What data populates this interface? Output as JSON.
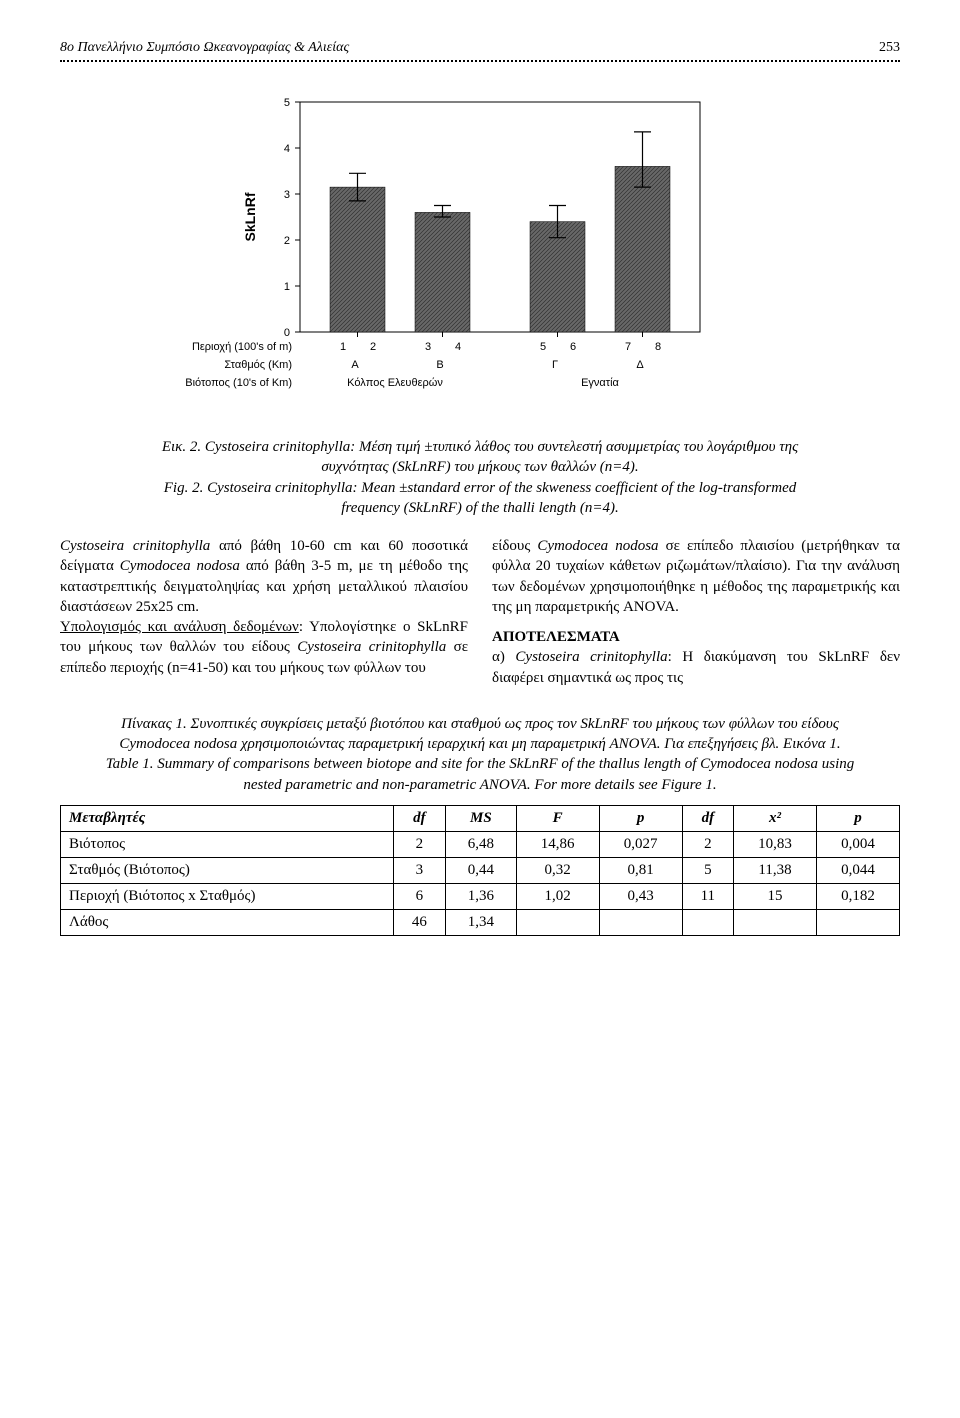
{
  "header": {
    "title": "8ο Πανελλήνιο Συμπόσιο Ωκεανογραφίας & Αλιείας",
    "page": "253"
  },
  "chart": {
    "type": "bar",
    "ylabel": "SkLnRf",
    "ylim": [
      0,
      5
    ],
    "ytick_step": 1,
    "bars": [
      {
        "x": 1,
        "val": 3.15,
        "err_low": 2.85,
        "err_high": 3.45
      },
      {
        "x": 2,
        "val": 2.6,
        "err_low": 2.5,
        "err_high": 2.75
      },
      {
        "x": 3,
        "val": 2.4,
        "err_low": 2.05,
        "err_high": 2.75
      },
      {
        "x": 4,
        "val": 3.6,
        "err_low": 3.15,
        "err_high": 4.35
      }
    ],
    "bar_color": "#606060",
    "row_labels": {
      "row1": "Περιοχή (100's of m)",
      "row2": "Σταθμός (Km)",
      "row3": "Βιότοπος (10's of Km)"
    },
    "region_labels": [
      "1",
      "2",
      "3",
      "4",
      "5",
      "6",
      "7",
      "8"
    ],
    "station_labels": [
      "Α",
      "Β",
      "Γ",
      "Δ"
    ],
    "biotope_labels": [
      "Κόλπος Ελευθερών",
      "Εγνατία"
    ],
    "background_color": "#ffffff",
    "axis_color": "#000000",
    "bar_width": 0.75,
    "label_fontsize": 11
  },
  "fig_caption_gr_prefix": "Εικ. 2. ",
  "fig_caption_gr": "Cystoseira crinitophylla: Μέση τιμή ±τυπικό λάθος του συντελεστή ασυμμετρίας του λογάριθμου της συχνότητας (SkLnRF) του μήκους των θαλλών (n=4).",
  "fig_caption_en_prefix": "Fig. 2. ",
  "fig_caption_en": "Cystoseira crinitophylla: Mean ±standard error of the skweness coefficient of the log-transformed frequency (SkLnRF) of the thalli length (n=4).",
  "col_left_p1a": "Cystoseira crinitophylla",
  "col_left_p1b": " από βάθη 10-60 cm και 60 ποσοτικά δείγματα ",
  "col_left_p1c": "Cymodocea nodosa",
  "col_left_p1d": " από βάθη 3-5 m, με τη μέθοδο της καταστρεπτικής δειγματοληψίας και χρήση μεταλλικού πλαισίου διαστάσεων 25x25 cm.",
  "col_left_p2a": "Υπολογισμός και ανάλυση δεδομένων",
  "col_left_p2b": ": Υπολογί­στηκε ο SkLnRF του μήκους των θαλλών του είδους ",
  "col_left_p2c": "Cystoseira crinitophylla",
  "col_left_p2d": " σε επίπεδο περι­οχής (n=41-50) και του μήκους των φύλλων του",
  "col_right_p1a": "είδους ",
  "col_right_p1b": "Cymodocea nodosa",
  "col_right_p1c": " σε επίπεδο πλαισίου (μετρήθηκαν τα φύλλα 20 τυχαίων κάθετων ρι­ζωμάτων/πλαίσιο). Για την ανάλυση των δεδο­μένων χρησιμοποιήθηκε η μέθοδος της παραμε­τρικής και της μη παραμετρικής ANOVA.",
  "col_right_head": "ΑΠΟΤΕΛΕΣΜΑΤΑ",
  "col_right_p2a": "α) ",
  "col_right_p2b": "Cystoseira crinitophylla",
  "col_right_p2c": ": Η διακύμανση του SkLnRF δεν διαφέρει σημαντικά ως προς τις",
  "table_caption_gr_prefix": "Πίνακας 1. ",
  "table_caption_gr": "Συνοπτικές συγκρίσεις μεταξύ βιοτόπου και σταθμού ως προς τον SkLnRF του μήκους των φύλλων του είδους Cymodocea nodosa χρησιμοποιώντας παραμετρική ιεραρχική και μη παραμετρική ANOVA. Για επεξηγήσεις βλ. Εικόνα 1.",
  "table_caption_en_prefix": "Table 1. ",
  "table_caption_en": "Summary of comparisons between biotope and site for the SkLnRF of the thallus length of Cymodocea nodosa using nested parametric and non-parametric ANOVA. For more details see Figure 1.",
  "table": {
    "columns": [
      "Μεταβλητές",
      "df",
      "MS",
      "F",
      "p",
      "df",
      "x²",
      "p"
    ],
    "rows": [
      [
        "Βιότοπος",
        "2",
        "6,48",
        "14,86",
        "0,027",
        "2",
        "10,83",
        "0,004"
      ],
      [
        "Σταθμός (Βιότοπος)",
        "3",
        "0,44",
        "0,32",
        "0,81",
        "5",
        "11,38",
        "0,044"
      ],
      [
        "Περιοχή (Βιότοπος x Σταθμός)",
        "6",
        "1,36",
        "1,02",
        "0,43",
        "11",
        "15",
        "0,182"
      ],
      [
        "Λάθος",
        "46",
        "1,34",
        "",
        "",
        "",
        "",
        ""
      ]
    ],
    "col_align": [
      "left",
      "center",
      "center",
      "center",
      "center",
      "center",
      "center",
      "center"
    ],
    "border_color": "#000000"
  }
}
